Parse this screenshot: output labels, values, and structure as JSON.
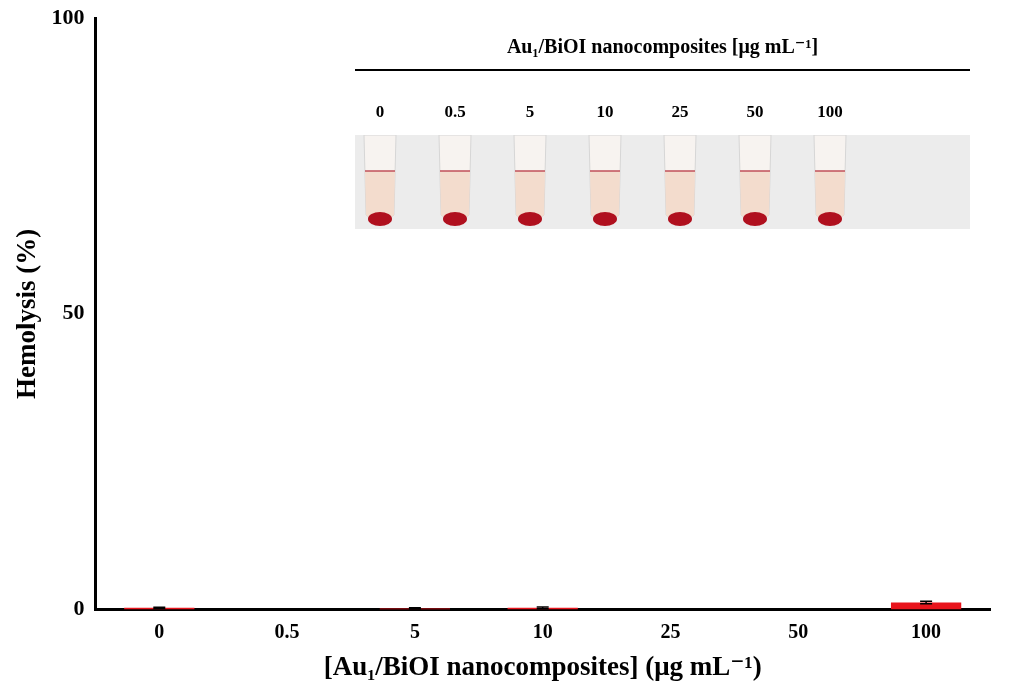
{
  "chart_data": {
    "type": "bar",
    "y_label": "Hemolysis (%)",
    "x_label": "[Au₁/BiOI nanocomposites] (μg mL⁻¹)",
    "categories": [
      "0",
      "0.5",
      "5",
      "10",
      "25",
      "50",
      "100"
    ],
    "values": [
      0.3,
      0,
      0.2,
      0.3,
      0,
      0,
      1.2
    ],
    "errors": [
      0.1,
      0,
      0.1,
      0.15,
      0,
      0,
      0.2
    ],
    "color": "#e8141c",
    "ylim": [
      0,
      100
    ],
    "yticks": [
      0,
      50,
      100
    ],
    "grid": false,
    "inset": {
      "title": "Au₁/BiOI nanocomposites [μg mL⁻¹]",
      "labels": [
        "0",
        "0.5",
        "5",
        "10",
        "25",
        "50",
        "100"
      ]
    }
  }
}
